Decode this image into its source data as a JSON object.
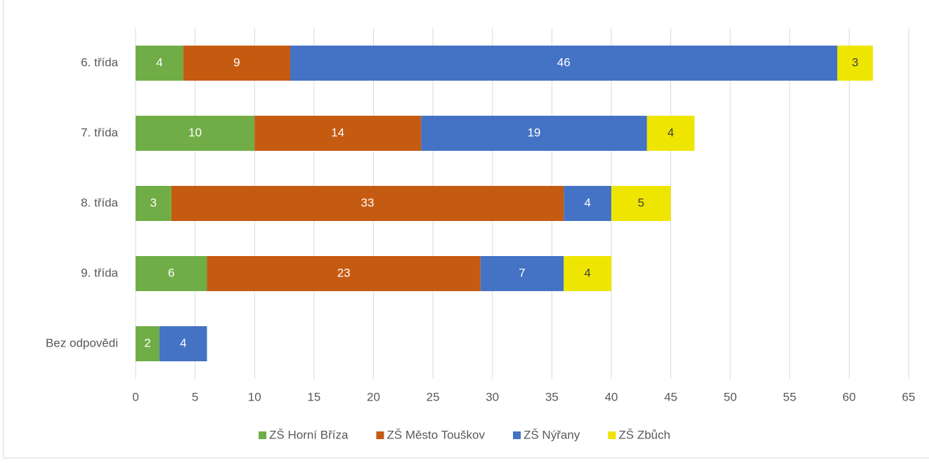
{
  "chart_data": {
    "type": "stacked_barh",
    "categories": [
      "6. třída",
      "7. třída",
      "8. třída",
      "9. třída",
      "Bez odpovědi"
    ],
    "series": [
      {
        "name": "ZŠ Horní Bříza",
        "color": "#70ad47",
        "label_color": "#ffffff",
        "values": [
          4,
          10,
          3,
          6,
          2
        ]
      },
      {
        "name": "ZŠ Město Touškov",
        "color": "#c55a11",
        "label_color": "#ffffff",
        "values": [
          9,
          14,
          33,
          23,
          null
        ]
      },
      {
        "name": "ZŠ Nýřany",
        "color": "#4472c4",
        "label_color": "#ffffff",
        "values": [
          46,
          19,
          4,
          7,
          4
        ]
      },
      {
        "name": "ZŠ Zbůch",
        "color": "#eee600",
        "label_color": "#404040",
        "values": [
          3,
          4,
          5,
          4,
          null
        ]
      }
    ],
    "xlim": [
      0,
      65
    ],
    "xticks": [
      0,
      5,
      10,
      15,
      20,
      25,
      30,
      35,
      40,
      45,
      50,
      55,
      60,
      65
    ],
    "grid": true,
    "legend": "bottom"
  }
}
